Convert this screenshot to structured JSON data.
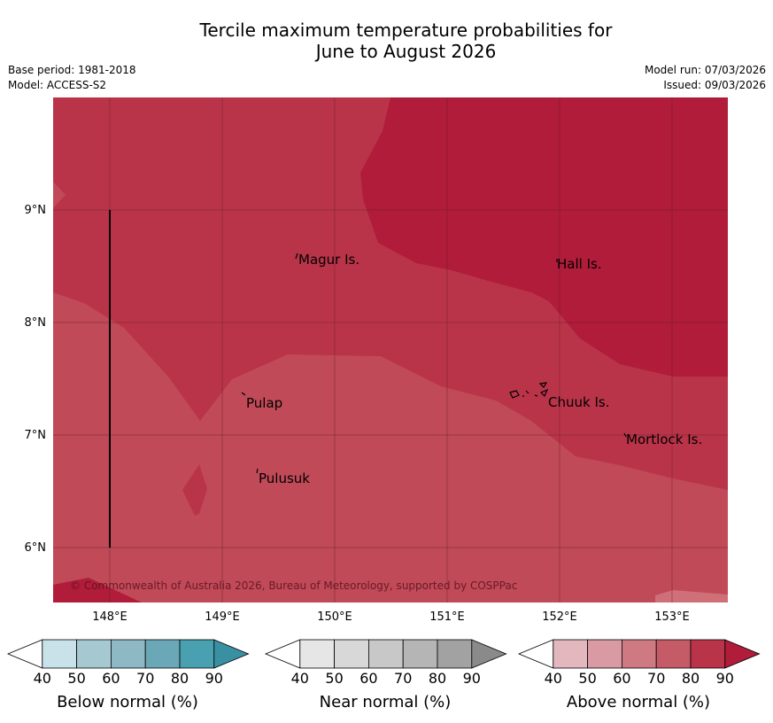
{
  "header": {
    "title_line1": "Tercile maximum temperature probabilities for",
    "title_line2": "June to August 2026",
    "base_period": "Base period: 1981-2018",
    "model": "Model: ACCESS-S2",
    "model_run": "Model run: 07/03/2026",
    "issued": "Issued: 09/03/2026"
  },
  "map": {
    "lat_labels": [
      "9°N",
      "8°N",
      "7°N",
      "6°N"
    ],
    "lon_labels": [
      "148°E",
      "149°E",
      "150°E",
      "151°E",
      "152°E",
      "153°E"
    ],
    "places": [
      "Magur Is.",
      "Hall Is.",
      "Pulap",
      "Chuuk Is.",
      "Mortlock Is.",
      "Pulusuk"
    ],
    "copyright": "© Commonwealth of Australia 2026, Bureau of Meteorology, supported by COSPPac",
    "colors": {
      "above_70": "#c04a57",
      "above_80": "#ba3449",
      "above_90": "#b01c39",
      "above_60": "#cf7079"
    }
  },
  "legends": [
    {
      "label": "Below normal (%)",
      "ticks": [
        "40",
        "50",
        "60",
        "70",
        "80",
        "90"
      ],
      "colors": [
        "#ffffff",
        "#c9e1e8",
        "#a6c9d1",
        "#8db8c4",
        "#6aa8b7",
        "#48a0b0",
        "#3a90a3"
      ]
    },
    {
      "label": "Near normal (%)",
      "ticks": [
        "40",
        "50",
        "60",
        "70",
        "80",
        "90"
      ],
      "colors": [
        "#ffffff",
        "#e6e6e6",
        "#d8d8d8",
        "#c8c8c8",
        "#b5b5b5",
        "#a2a2a2",
        "#8a8a8a"
      ]
    },
    {
      "label": "Above normal (%)",
      "ticks": [
        "40",
        "50",
        "60",
        "70",
        "80",
        "90"
      ],
      "colors": [
        "#ffffff",
        "#e2b7be",
        "#d99aa3",
        "#cf7a83",
        "#c65b68",
        "#ba3449",
        "#b01c39"
      ]
    }
  ]
}
